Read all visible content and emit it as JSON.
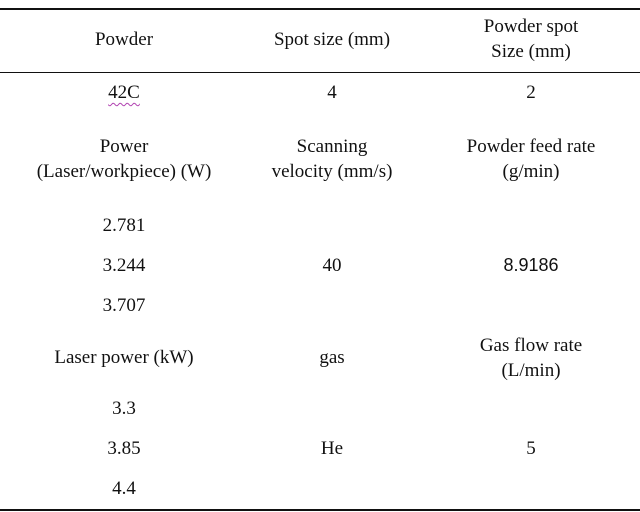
{
  "table": {
    "header": {
      "col1": "Powder",
      "col2": "Spot size (mm)",
      "col3_line1": "Powder spot",
      "col3_line2": "Size (mm)"
    },
    "row1": {
      "powder": "42C",
      "spot_size": "4",
      "powder_spot_size": "2"
    },
    "section2_header": {
      "col1_line1": "Power",
      "col1_line2": "(Laser/workpiece) (W)",
      "col2_line1": "Scanning",
      "col2_line2": "velocity (mm/s)",
      "col3_line1": "Powder feed rate",
      "col3_line2": "(g/min)"
    },
    "section2_values": {
      "powers": [
        "2.781",
        "3.244",
        "3.707"
      ],
      "scanning_velocity": "40",
      "powder_feed_rate": "8.9186"
    },
    "section3_header": {
      "col1": "Laser power (kW)",
      "col2": "gas",
      "col3_line1": "Gas flow rate",
      "col3_line2": "(L/min)"
    },
    "section3_values": {
      "laser_powers": [
        "3.3",
        "3.85",
        "4.4"
      ],
      "gas": "He",
      "gas_flow_rate": "5"
    }
  }
}
